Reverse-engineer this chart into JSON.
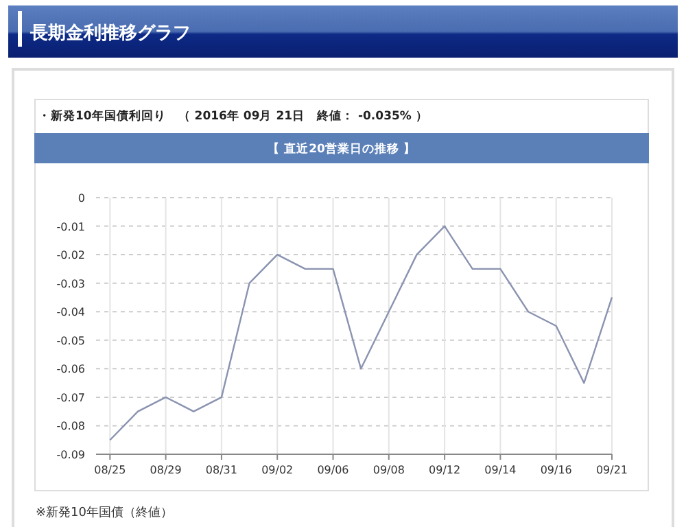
{
  "chart_data": {
    "type": "line",
    "title": "長期金利推移グラフ",
    "subtitle": "・新発10年国債利回り　（ 2016年 09月 21日　終値： -0.035% ）",
    "annotations": [
      "【 直近20営業日の推移 】",
      "※新発10年国債（終値）"
    ],
    "categories": [
      "08/25",
      null,
      "08/29",
      null,
      "08/31",
      null,
      "09/02",
      null,
      "09/06",
      null,
      "09/08",
      null,
      "09/12",
      null,
      "09/14",
      null,
      "09/16",
      null,
      "09/21"
    ],
    "values": [
      -0.085,
      -0.075,
      -0.07,
      -0.075,
      -0.07,
      -0.03,
      -0.02,
      -0.025,
      -0.025,
      -0.06,
      -0.04,
      -0.02,
      -0.01,
      -0.025,
      -0.025,
      -0.04,
      -0.045,
      -0.065,
      -0.035
    ],
    "color": "#8a93b0",
    "ylim": [
      -0.09,
      0
    ],
    "yticks": [
      0,
      -0.01,
      -0.02,
      -0.03,
      -0.04,
      -0.05,
      -0.06,
      -0.07,
      -0.08,
      -0.09
    ],
    "grid": true,
    "line_style": "solid"
  }
}
